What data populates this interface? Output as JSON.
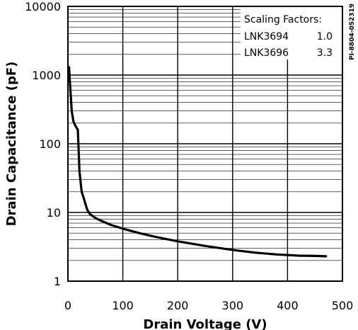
{
  "chart_data": {
    "type": "line",
    "xlabel": "Drain Voltage (V)",
    "ylabel": "Drain Capacitance (pF)",
    "xlim": [
      0,
      500
    ],
    "ylim": [
      1,
      10000
    ],
    "yscale": "log",
    "grid": true,
    "x_ticks": [
      "0",
      "100",
      "200",
      "300",
      "400",
      "500"
    ],
    "y_ticks": [
      "1",
      "10",
      "100",
      "1000",
      "10000"
    ],
    "series": [
      {
        "x": [
          2,
          4,
          7,
          10,
          14,
          18,
          21,
          25,
          30,
          35,
          40,
          50,
          60,
          80,
          100,
          130,
          160,
          200,
          250,
          300,
          340,
          380,
          420,
          450,
          470
        ],
        "y": [
          1300,
          700,
          300,
          210,
          180,
          160,
          40,
          20,
          15,
          11,
          9.5,
          8.3,
          7.6,
          6.5,
          5.8,
          5.0,
          4.4,
          3.8,
          3.25,
          2.85,
          2.6,
          2.45,
          2.35,
          2.33,
          2.3
        ]
      }
    ],
    "legend": {
      "placement": "top-right",
      "title": "Scaling Factors:",
      "rows": [
        {
          "part": "LNK3694",
          "factor": "1.0"
        },
        {
          "part": "LNK3696",
          "factor": "3.3"
        }
      ]
    },
    "reference": "PI-8804-052319"
  }
}
